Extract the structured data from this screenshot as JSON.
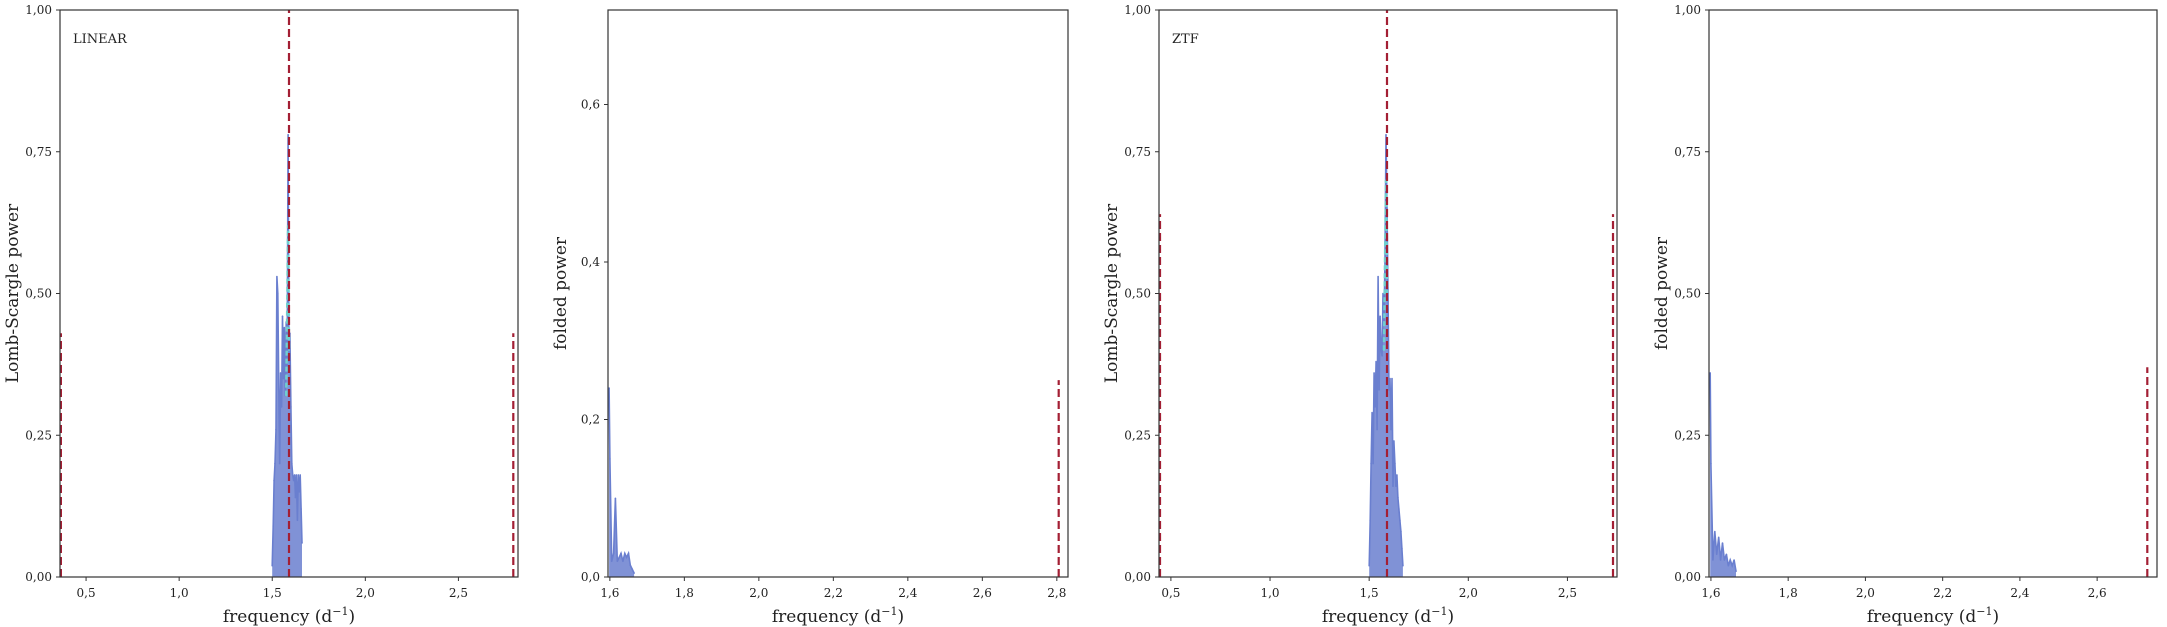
{
  "figure": {
    "line_color": "#6a7fcf",
    "overlay_color": "#6fcfcf",
    "marker_color": "#a31f34",
    "frame_color": "#333333"
  },
  "chart_data": [
    {
      "type": "line",
      "label": "LINEAR",
      "xlabel": "frequency (d",
      "xlabel_sup": "−1",
      "xlabel_end": ")",
      "ylabel": "Lomb-Scargle power",
      "xlim": [
        0.36,
        2.82
      ],
      "ylim": [
        0,
        1.0
      ],
      "xticks": [
        0.5,
        1.0,
        1.5,
        2.0,
        2.5
      ],
      "xtick_labels": [
        "0,5",
        "1,0",
        "1,5",
        "2,0",
        "2,5"
      ],
      "yticks": [
        0,
        0.25,
        0.5,
        0.75,
        1.0
      ],
      "ytick_labels": [
        "0,00",
        "0,25",
        "0,50",
        "0,75",
        "1,00"
      ],
      "series": [
        {
          "kind": "periodogram",
          "x": [
            1.5,
            1.505,
            1.51,
            1.515,
            1.52,
            1.525,
            1.53,
            1.535,
            1.54,
            1.545,
            1.55,
            1.555,
            1.56,
            1.565,
            1.57,
            1.575,
            1.58,
            1.585,
            1.59,
            1.595,
            1.6,
            1.605,
            1.61,
            1.615,
            1.62,
            1.625,
            1.63,
            1.635,
            1.64,
            1.645,
            1.65,
            1.655,
            1.66
          ],
          "y": [
            0.02,
            0.09,
            0.17,
            0.2,
            0.26,
            0.53,
            0.5,
            0.33,
            0.2,
            0.36,
            0.3,
            0.46,
            0.35,
            0.44,
            0.32,
            0.45,
            0.36,
            0.78,
            0.38,
            0.43,
            0.3,
            0.2,
            0.18,
            0.17,
            0.18,
            0.14,
            0.18,
            0.1,
            0.18,
            0.15,
            0.18,
            0.12,
            0.06
          ]
        },
        {
          "kind": "overlay",
          "x": [
            1.575,
            1.58,
            1.585,
            1.59
          ],
          "y": [
            0.32,
            0.45,
            0.62,
            0.4
          ]
        }
      ],
      "markers": [
        {
          "x": 0.365,
          "y_top": 0.43
        },
        {
          "x": 1.59,
          "y_top": 1.0
        },
        {
          "x": 2.795,
          "y_top": 0.43
        }
      ]
    },
    {
      "type": "line",
      "label": "",
      "xlabel": "frequency (d",
      "xlabel_sup": "−1",
      "xlabel_end": ")",
      "ylabel": "folded power",
      "xlim": [
        1.595,
        2.83
      ],
      "ylim": [
        0,
        0.72
      ],
      "xticks": [
        1.6,
        1.8,
        2.0,
        2.2,
        2.4,
        2.6,
        2.8
      ],
      "xtick_labels": [
        "1,6",
        "1,8",
        "2,0",
        "2,2",
        "2,4",
        "2,6",
        "2,8"
      ],
      "yticks": [
        0,
        0.2,
        0.4,
        0.6
      ],
      "ytick_labels": [
        "0,0",
        "0,2",
        "0,4",
        "0,6"
      ],
      "series": [
        {
          "kind": "periodogram",
          "x": [
            1.598,
            1.6,
            1.605,
            1.61,
            1.615,
            1.62,
            1.625,
            1.63,
            1.635,
            1.64,
            1.645,
            1.65,
            1.655,
            1.66,
            1.665
          ],
          "y": [
            0.24,
            0.15,
            0.02,
            0.03,
            0.1,
            0.02,
            0.025,
            0.03,
            0.02,
            0.03,
            0.025,
            0.03,
            0.015,
            0.01,
            0.005
          ]
        }
      ],
      "markers": [
        {
          "x": 2.805,
          "y_top": 0.25
        }
      ]
    },
    {
      "type": "line",
      "label": "ZTF",
      "xlabel": "frequency (d",
      "xlabel_sup": "−1",
      "xlabel_end": ")",
      "ylabel": "Lomb-Scargle power",
      "xlim": [
        0.44,
        2.75
      ],
      "ylim": [
        0,
        1.0
      ],
      "xticks": [
        0.5,
        1.0,
        1.5,
        2.0,
        2.5
      ],
      "xtick_labels": [
        "0,5",
        "1,0",
        "1,5",
        "2,0",
        "2,5"
      ],
      "yticks": [
        0,
        0.25,
        0.5,
        0.75,
        1.0
      ],
      "ytick_labels": [
        "0,00",
        "0,25",
        "0,50",
        "0,75",
        "1,00"
      ],
      "series": [
        {
          "kind": "periodogram",
          "x": [
            1.5,
            1.505,
            1.51,
            1.515,
            1.52,
            1.525,
            1.53,
            1.535,
            1.54,
            1.545,
            1.55,
            1.555,
            1.56,
            1.565,
            1.57,
            1.575,
            1.58,
            1.585,
            1.59,
            1.595,
            1.6,
            1.605,
            1.61,
            1.615,
            1.62,
            1.625,
            1.63,
            1.635,
            1.64,
            1.645,
            1.65,
            1.655,
            1.66,
            1.665,
            1.67
          ],
          "y": [
            0.02,
            0.1,
            0.2,
            0.29,
            0.2,
            0.36,
            0.3,
            0.38,
            0.26,
            0.53,
            0.33,
            0.46,
            0.4,
            0.39,
            0.5,
            0.45,
            0.56,
            0.78,
            0.65,
            0.5,
            0.33,
            0.35,
            0.26,
            0.35,
            0.16,
            0.24,
            0.2,
            0.16,
            0.18,
            0.14,
            0.12,
            0.1,
            0.08,
            0.05,
            0.02
          ]
        },
        {
          "kind": "overlay",
          "x": [
            1.575,
            1.58,
            1.585,
            1.59
          ],
          "y": [
            0.4,
            0.55,
            0.7,
            0.5
          ]
        }
      ],
      "markers": [
        {
          "x": 0.445,
          "y_top": 0.64
        },
        {
          "x": 1.59,
          "y_top": 1.0
        },
        {
          "x": 2.73,
          "y_top": 0.64
        }
      ]
    },
    {
      "type": "line",
      "label": "",
      "xlabel": "frequency (d",
      "xlabel_sup": "−1",
      "xlabel_end": ")",
      "ylabel": "folded power",
      "xlim": [
        1.595,
        2.755
      ],
      "ylim": [
        0,
        1.0
      ],
      "xticks": [
        1.6,
        1.8,
        2.0,
        2.2,
        2.4,
        2.6
      ],
      "xtick_labels": [
        "1,6",
        "1,8",
        "2,0",
        "2,2",
        "2,4",
        "2,6"
      ],
      "yticks": [
        0,
        0.25,
        0.5,
        0.75,
        1.0
      ],
      "ytick_labels": [
        "0,00",
        "0,25",
        "0,50",
        "0,75",
        "1,00"
      ],
      "series": [
        {
          "kind": "periodogram",
          "x": [
            1.598,
            1.6,
            1.605,
            1.61,
            1.615,
            1.62,
            1.625,
            1.63,
            1.635,
            1.64,
            1.645,
            1.65,
            1.655,
            1.66,
            1.665
          ],
          "y": [
            0.36,
            0.2,
            0.03,
            0.08,
            0.04,
            0.07,
            0.03,
            0.06,
            0.03,
            0.04,
            0.02,
            0.03,
            0.02,
            0.03,
            0.01
          ]
        }
      ],
      "markers": [
        {
          "x": 2.73,
          "y_top": 0.37
        }
      ]
    }
  ]
}
